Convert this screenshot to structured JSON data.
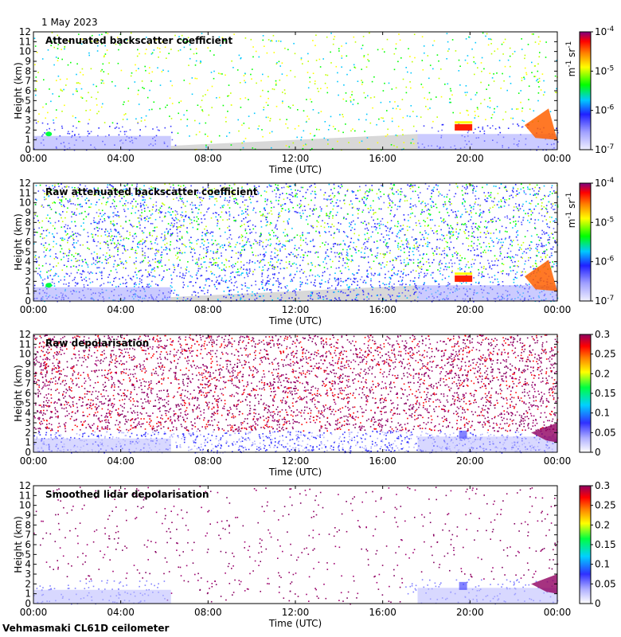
{
  "date": "1 May 2023",
  "footer": "Vehmasmaki CL61D ceilometer",
  "chart_data": [
    {
      "type": "heatmap",
      "title": "Attenuated backscatter coefficient",
      "xlabel": "Time (UTC)",
      "ylabel": "Height (km)",
      "xticks": [
        "00:00",
        "04:00",
        "08:00",
        "12:00",
        "16:00",
        "20:00",
        "00:00"
      ],
      "yticks": [
        "0",
        "1",
        "2",
        "3",
        "4",
        "5",
        "6",
        "7",
        "8",
        "9",
        "10",
        "11",
        "12"
      ],
      "ylim": [
        0,
        12
      ],
      "colorbar": {
        "scale": "log",
        "unit": "m-1 sr-1",
        "ticks": [
          "10-7",
          "10-6",
          "10-5",
          "10-4"
        ]
      }
    },
    {
      "type": "heatmap",
      "title": "Raw attenuated backscatter coefficient",
      "xlabel": "Time (UTC)",
      "ylabel": "Height (km)",
      "xticks": [
        "00:00",
        "04:00",
        "08:00",
        "12:00",
        "16:00",
        "20:00",
        "00:00"
      ],
      "yticks": [
        "0",
        "1",
        "2",
        "3",
        "4",
        "5",
        "6",
        "7",
        "8",
        "9",
        "10",
        "11",
        "12"
      ],
      "ylim": [
        0,
        12
      ],
      "colorbar": {
        "scale": "log",
        "unit": "m-1 sr-1",
        "ticks": [
          "10-7",
          "10-6",
          "10-5",
          "10-4"
        ]
      }
    },
    {
      "type": "heatmap",
      "title": "Raw depolarisation",
      "xlabel": "Time (UTC)",
      "ylabel": "Height (km)",
      "xticks": [
        "00:00",
        "04:00",
        "08:00",
        "12:00",
        "16:00",
        "20:00",
        "00:00"
      ],
      "yticks": [
        "0",
        "1",
        "2",
        "3",
        "4",
        "5",
        "6",
        "7",
        "8",
        "9",
        "10",
        "11",
        "12"
      ],
      "ylim": [
        0,
        12
      ],
      "colorbar": {
        "scale": "linear",
        "unit": "",
        "ticks": [
          "0",
          "0.05",
          "0.1",
          "0.15",
          "0.2",
          "0.25",
          "0.3"
        ]
      }
    },
    {
      "type": "heatmap",
      "title": "Smoothed lidar depolarisation",
      "xlabel": "Time (UTC)",
      "ylabel": "Height (km)",
      "xticks": [
        "00:00",
        "04:00",
        "08:00",
        "12:00",
        "16:00",
        "20:00",
        "00:00"
      ],
      "yticks": [
        "0",
        "1",
        "2",
        "3",
        "4",
        "5",
        "6",
        "7",
        "8",
        "9",
        "10",
        "11",
        "12"
      ],
      "ylim": [
        0,
        12
      ],
      "colorbar": {
        "scale": "linear",
        "unit": "",
        "ticks": [
          "0",
          "0.05",
          "0.1",
          "0.15",
          "0.2",
          "0.25",
          "0.3"
        ]
      }
    }
  ]
}
